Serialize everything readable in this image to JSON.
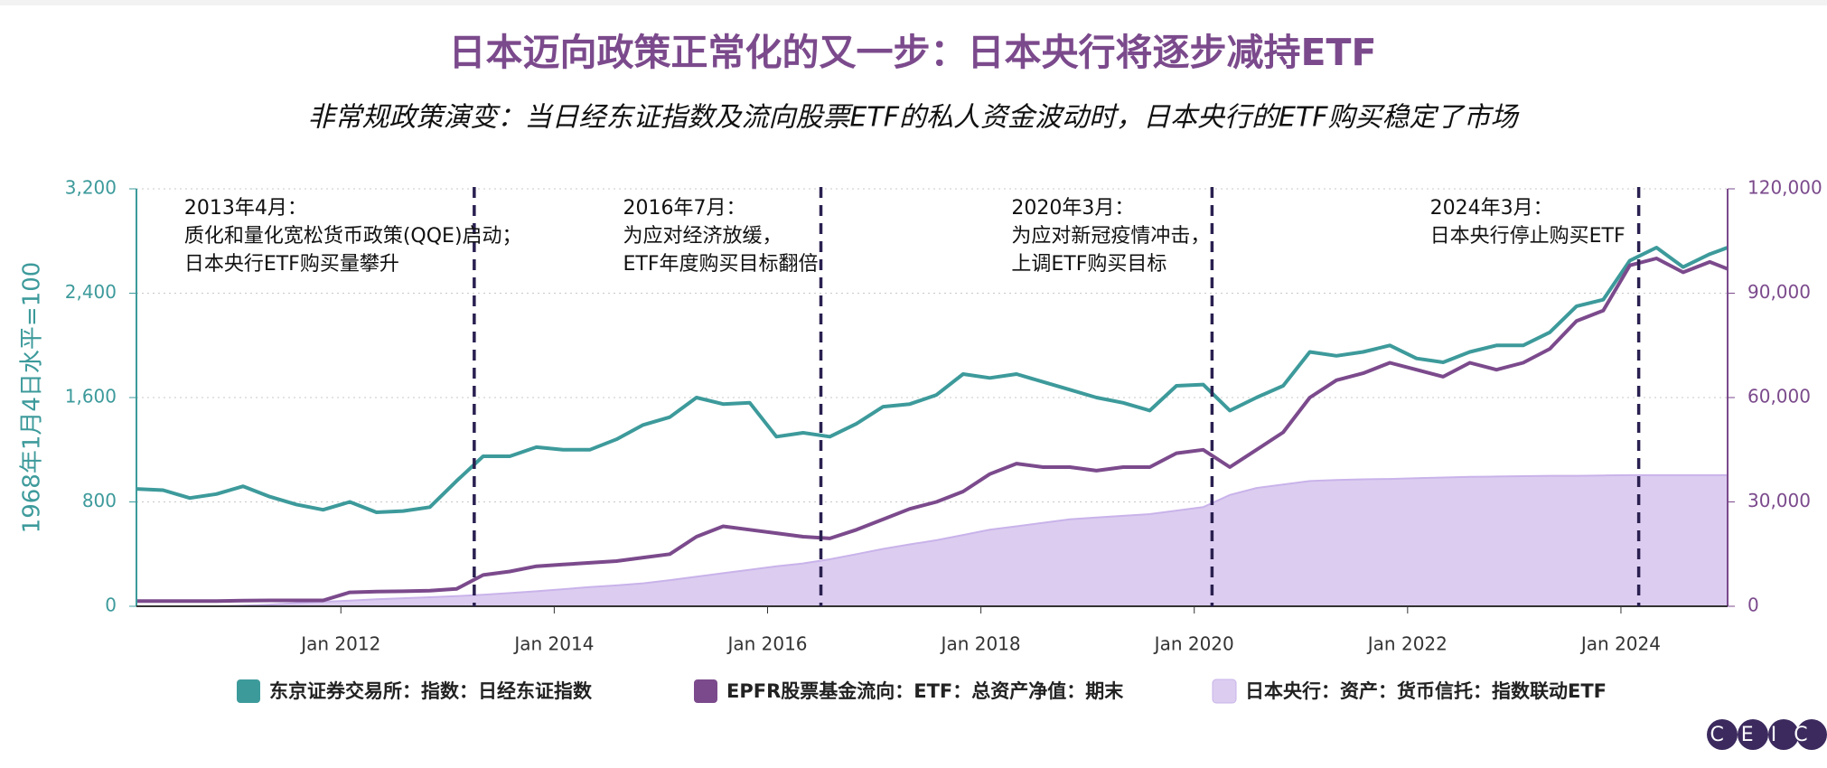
{
  "chart_data": {
    "type": "line",
    "title": "日本迈向政策正常化的又一步：日本央行将逐步减持ETF",
    "subtitle": "非常规政策演变：当日经东证指数及流向股票ETF的私人资金波动时，日本央行的ETF购买稳定了市场",
    "y_label": "1968年1月4日水平=100",
    "xlim": [
      "2010-02",
      "2025-01"
    ],
    "xticks": [
      {
        "value": "2012-01",
        "label": "Jan 2012"
      },
      {
        "value": "2014-01",
        "label": "Jan 2014"
      },
      {
        "value": "2016-01",
        "label": "Jan 2016"
      },
      {
        "value": "2018-01",
        "label": "Jan 2018"
      },
      {
        "value": "2020-01",
        "label": "Jan 2020"
      },
      {
        "value": "2022-01",
        "label": "Jan 2022"
      },
      {
        "value": "2024-01",
        "label": "Jan 2024"
      }
    ],
    "ylim": [
      0,
      3200
    ],
    "yticks": [
      0,
      800,
      {
        "value": 1600,
        "label": "1,600"
      },
      {
        "value": 2400,
        "label": "2,400"
      },
      {
        "value": 3200,
        "label": "3,200"
      }
    ],
    "y2lim": [
      0,
      120000
    ],
    "y2ticks": [
      0,
      {
        "value": 30000,
        "label": "30,000"
      },
      {
        "value": 60000,
        "label": "60,000"
      },
      {
        "value": 90000,
        "label": "90,000"
      },
      {
        "value": 120000,
        "label": "120,000"
      }
    ],
    "grid": true,
    "x": [
      "2010-02",
      "2010-05",
      "2010-08",
      "2010-11",
      "2011-02",
      "2011-05",
      "2011-08",
      "2011-11",
      "2012-02",
      "2012-05",
      "2012-08",
      "2012-11",
      "2013-02",
      "2013-05",
      "2013-08",
      "2013-11",
      "2014-02",
      "2014-05",
      "2014-08",
      "2014-11",
      "2015-02",
      "2015-05",
      "2015-08",
      "2015-11",
      "2016-02",
      "2016-05",
      "2016-08",
      "2016-11",
      "2017-02",
      "2017-05",
      "2017-08",
      "2017-11",
      "2018-02",
      "2018-05",
      "2018-08",
      "2018-11",
      "2019-02",
      "2019-05",
      "2019-08",
      "2019-11",
      "2020-02",
      "2020-05",
      "2020-08",
      "2020-11",
      "2021-02",
      "2021-05",
      "2021-08",
      "2021-11",
      "2022-02",
      "2022-05",
      "2022-08",
      "2022-11",
      "2023-02",
      "2023-05",
      "2023-08",
      "2023-11",
      "2024-02",
      "2024-05",
      "2024-08",
      "2024-11",
      "2025-01"
    ],
    "series": [
      {
        "name": "日本央行：资产：货币信托：指数联动ETF",
        "color": "#dccdf0",
        "style": "area",
        "axis": "y2",
        "values": [
          0,
          0,
          0,
          0,
          200,
          500,
          900,
          1300,
          1600,
          2000,
          2300,
          2600,
          2900,
          3300,
          3800,
          4300,
          4900,
          5500,
          6000,
          6600,
          7500,
          8500,
          9500,
          10500,
          11500,
          12300,
          13500,
          15000,
          16500,
          17800,
          19000,
          20500,
          22000,
          23000,
          24000,
          25000,
          25500,
          26000,
          26500,
          27500,
          28500,
          32000,
          34000,
          35000,
          36000,
          36300,
          36500,
          36600,
          36800,
          37000,
          37200,
          37300,
          37400,
          37500,
          37500,
          37600,
          37700,
          37700,
          37700,
          37700,
          37700
        ]
      },
      {
        "name": "东京证券交易所：指数：日经东证指数",
        "color": "#3d9a9b",
        "style": "line",
        "values": [
          900,
          890,
          830,
          860,
          920,
          840,
          780,
          740,
          800,
          720,
          730,
          760,
          960,
          1150,
          1150,
          1220,
          1200,
          1200,
          1280,
          1390,
          1450,
          1600,
          1550,
          1560,
          1300,
          1330,
          1300,
          1400,
          1530,
          1550,
          1620,
          1780,
          1750,
          1780,
          1720,
          1660,
          1600,
          1560,
          1500,
          1690,
          1700,
          1500,
          1600,
          1690,
          1950,
          1920,
          1950,
          2000,
          1900,
          1870,
          1950,
          2000,
          2000,
          2100,
          2300,
          2350,
          2650,
          2750,
          2600,
          2700,
          2750
        ]
      },
      {
        "name": "EPFR股票基金流向：ETF：总资产净值：期末",
        "color": "#7b4a8c",
        "style": "line",
        "axis": "y2",
        "values": [
          1500,
          1500,
          1500,
          1500,
          1600,
          1700,
          1700,
          1700,
          4000,
          4200,
          4300,
          4500,
          5000,
          9000,
          10000,
          11500,
          12000,
          12500,
          13000,
          14000,
          15000,
          20000,
          23000,
          22000,
          21000,
          20000,
          19500,
          22000,
          25000,
          28000,
          30000,
          33000,
          38000,
          41000,
          40000,
          40000,
          39000,
          40000,
          40000,
          44000,
          45000,
          40000,
          45000,
          50000,
          60000,
          65000,
          67000,
          70000,
          68000,
          66000,
          70000,
          68000,
          70000,
          74000,
          82000,
          85000,
          98000,
          100000,
          96000,
          99000,
          97000
        ]
      }
    ],
    "annotations": [
      {
        "x": "2013-04",
        "text": [
          "2013年4月：",
          "质化和量化宽松货币政策(QQE)启动；",
          "日本央行ETF购买量攀升"
        ]
      },
      {
        "x": "2016-07",
        "text": [
          "2016年7月：",
          "为应对经济放缓，",
          "ETF年度购买目标翻倍"
        ]
      },
      {
        "x": "2020-03",
        "text": [
          "2020年3月：",
          "为应对新冠疫情冲击，",
          "上调ETF购买目标"
        ]
      },
      {
        "x": "2024-03",
        "text": [
          "2024年3月：",
          "日本央行停止购买ETF"
        ]
      }
    ],
    "logo": "CEIC"
  }
}
